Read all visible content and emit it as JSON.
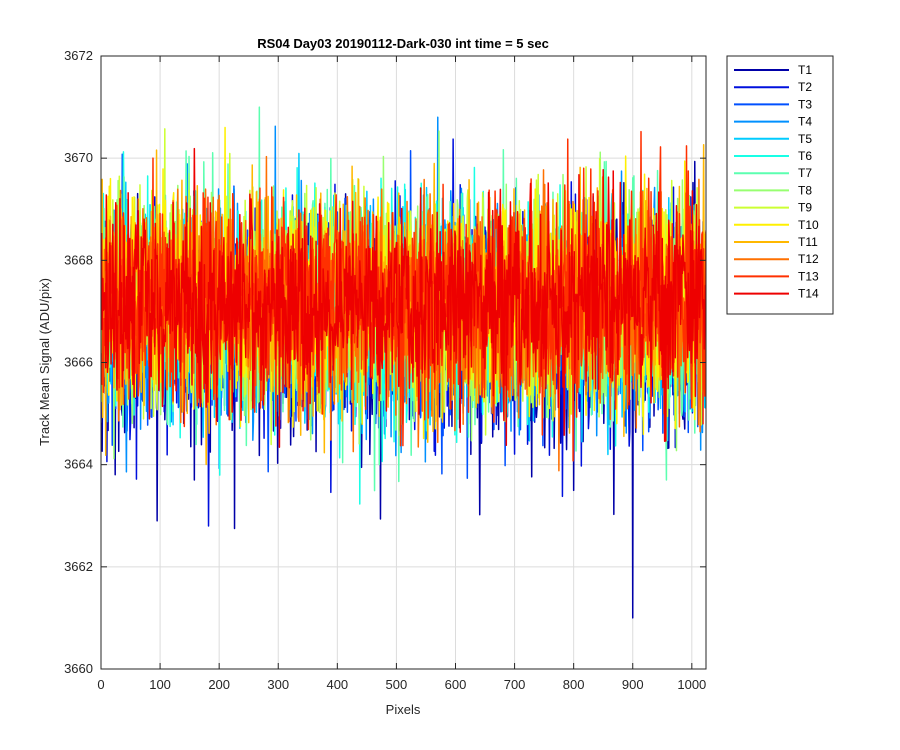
{
  "chart_data": {
    "type": "line",
    "title": "RS04 Day03 20190112-Dark-030 int time = 5 sec",
    "xlabel": "Pixels",
    "ylabel": "Track Mean Signal (ADU/pix)",
    "xlim": [
      0,
      1024
    ],
    "ylim": [
      3660,
      3672
    ],
    "x_ticks": [
      "0",
      "100",
      "200",
      "300",
      "400",
      "500",
      "600",
      "700",
      "800",
      "900",
      "1000"
    ],
    "y_ticks": [
      "3660",
      "3662",
      "3664",
      "3666",
      "3668",
      "3670",
      "3672"
    ],
    "grid": true,
    "legend_position": "outside-top-right",
    "x_range": [
      1,
      1024
    ],
    "series": [
      {
        "name": "T1",
        "color": "#0000A8",
        "mean": 3666.6,
        "noise": 1.0
      },
      {
        "name": "T2",
        "color": "#0010DD",
        "mean": 3666.7,
        "noise": 1.0
      },
      {
        "name": "T3",
        "color": "#0050FF",
        "mean": 3666.8,
        "noise": 1.0
      },
      {
        "name": "T4",
        "color": "#0090FF",
        "mean": 3666.9,
        "noise": 1.0
      },
      {
        "name": "T5",
        "color": "#00CCFF",
        "mean": 3667.0,
        "noise": 1.0
      },
      {
        "name": "T6",
        "color": "#18FFE6",
        "mean": 3667.0,
        "noise": 1.0
      },
      {
        "name": "T7",
        "color": "#5CFFB0",
        "mean": 3667.1,
        "noise": 1.0
      },
      {
        "name": "T8",
        "color": "#98FF70",
        "mean": 3667.1,
        "noise": 1.0
      },
      {
        "name": "T9",
        "color": "#CCFF33",
        "mean": 3667.2,
        "noise": 1.0
      },
      {
        "name": "T10",
        "color": "#FFF000",
        "mean": 3667.2,
        "noise": 1.0
      },
      {
        "name": "T11",
        "color": "#FFB800",
        "mean": 3667.2,
        "noise": 1.0
      },
      {
        "name": "T12",
        "color": "#FF7000",
        "mean": 3667.2,
        "noise": 1.0
      },
      {
        "name": "T13",
        "color": "#FF3000",
        "mean": 3667.2,
        "noise": 1.0
      },
      {
        "name": "T14",
        "color": "#EE0000",
        "mean": 3667.2,
        "noise": 1.0
      }
    ],
    "notable_points": [
      {
        "series": "T1",
        "x": 900,
        "y": 3661.0
      },
      {
        "series": "T2",
        "x": 182,
        "y": 3662.8
      },
      {
        "series": "T1",
        "x": 95,
        "y": 3662.9
      },
      {
        "series": "T4",
        "x": 570,
        "y": 3670.8
      },
      {
        "series": "T10",
        "x": 210,
        "y": 3670.6
      }
    ]
  }
}
